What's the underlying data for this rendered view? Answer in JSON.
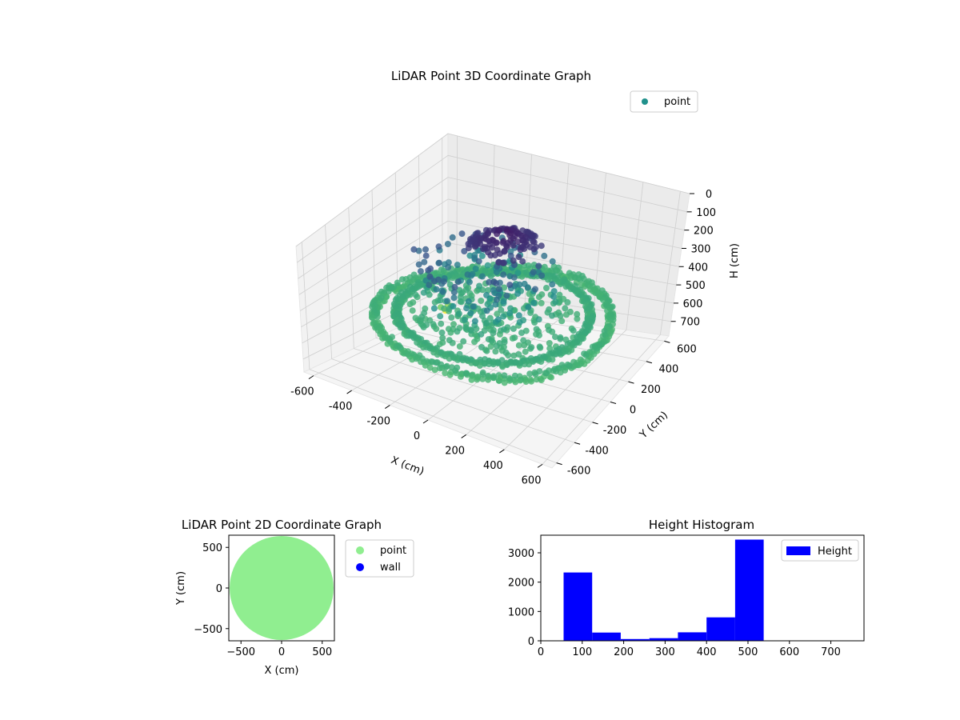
{
  "chart_data": [
    {
      "type": "scatter3d",
      "title": "LiDAR Point 3D Coordinate Graph",
      "xlabel": "X (cm)",
      "ylabel": "Y (cm)",
      "zlabel": "H (cm)",
      "xlim": [
        -650,
        650
      ],
      "ylim": [
        -650,
        650
      ],
      "zlim": [
        0,
        780
      ],
      "z_inverted": true,
      "xticks": [
        -600,
        -400,
        -200,
        0,
        200,
        400,
        600
      ],
      "yticks": [
        -600,
        -400,
        -200,
        0,
        200,
        400,
        600
      ],
      "zticks": [
        0,
        100,
        200,
        300,
        400,
        500,
        600,
        700
      ],
      "legend": {
        "entries": [
          "point"
        ],
        "placement": "top-right"
      },
      "colormap": [
        "#440154",
        "#3b528b",
        "#21918c",
        "#5ec962",
        "#fde725"
      ],
      "legend_color": "#21918c",
      "grid": true,
      "series": [
        {
          "name": "point",
          "structures": [
            {
              "kind": "ring",
              "radius": 570,
              "height": 500,
              "spread_h": 40
            },
            {
              "kind": "ring",
              "radius": 470,
              "height": 480,
              "spread_h": 30
            },
            {
              "kind": "cluster",
              "center_x": -80,
              "center_y": 60,
              "radius": 350,
              "height_range": [
                200,
                480
              ]
            },
            {
              "kind": "cap",
              "center_x": 0,
              "center_y": 80,
              "radius": 170,
              "height_range": [
                60,
                140
              ]
            }
          ],
          "outliers": [
            {
              "x": -600,
              "y": 550,
              "h": 780
            },
            {
              "x": -430,
              "y": 300,
              "h": 650
            },
            {
              "x": -380,
              "y": 150,
              "h": 600
            },
            {
              "x": 200,
              "y": -300,
              "h": 620
            },
            {
              "x": -560,
              "y": 60,
              "h": 500
            }
          ]
        }
      ]
    },
    {
      "type": "scatter",
      "title": "LiDAR Point 2D Coordinate Graph",
      "xlabel": "X (cm)",
      "ylabel": "Y (cm)",
      "xlim": [
        -650,
        650
      ],
      "ylim": [
        -650,
        650
      ],
      "xticks": [
        -500,
        0,
        500
      ],
      "yticks": [
        -500,
        0,
        500
      ],
      "legend": {
        "entries": [
          "point",
          "wall"
        ],
        "placement": "outside-right"
      },
      "series": [
        {
          "name": "point",
          "color": "#90ee90",
          "shape": "filled-disc",
          "radius": 640
        },
        {
          "name": "wall",
          "color": "#0000ff"
        }
      ]
    },
    {
      "type": "bar",
      "title": "Height Histogram",
      "xlim": [
        0,
        780
      ],
      "ylim": [
        0,
        3600
      ],
      "xticks": [
        0,
        100,
        200,
        300,
        400,
        500,
        600,
        700
      ],
      "yticks": [
        0,
        1000,
        2000,
        3000
      ],
      "legend": {
        "entries": [
          "Height"
        ],
        "placement": "top-right"
      },
      "bin_edges": [
        55,
        124,
        193,
        262,
        331,
        400,
        469,
        538
      ],
      "series": [
        {
          "name": "Height",
          "color": "#0000ff",
          "values": [
            2330,
            280,
            60,
            90,
            290,
            800,
            3450
          ]
        }
      ]
    }
  ]
}
